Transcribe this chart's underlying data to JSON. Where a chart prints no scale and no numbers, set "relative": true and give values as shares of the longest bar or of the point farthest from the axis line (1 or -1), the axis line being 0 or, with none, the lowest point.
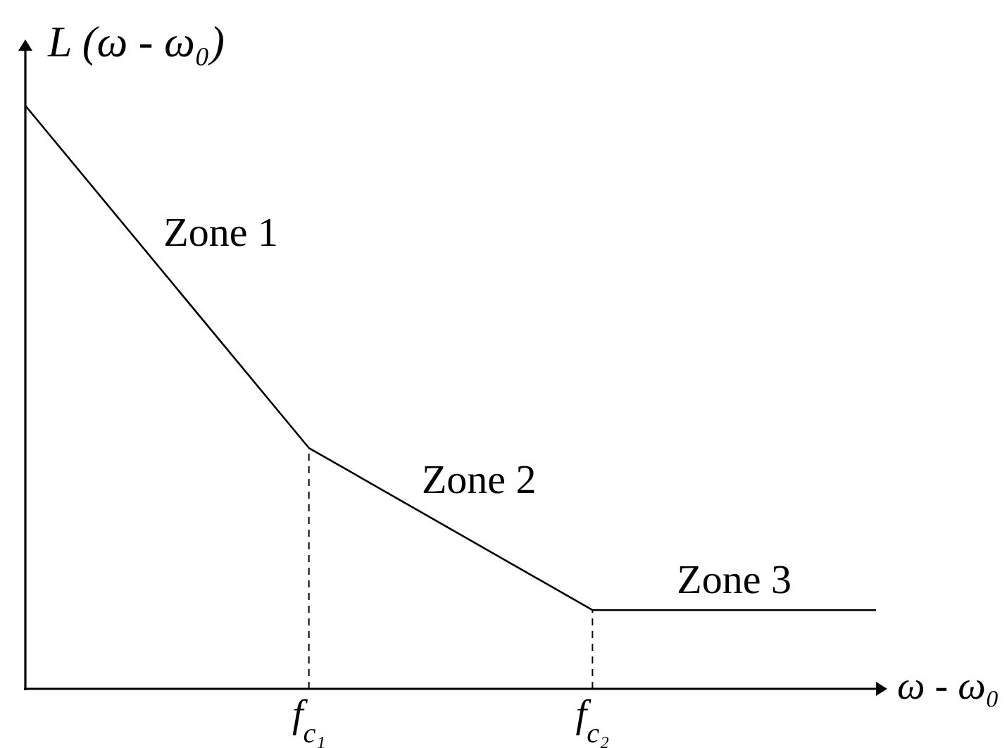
{
  "chart_data": {
    "type": "line",
    "relative": true,
    "xlabel": "ω - ω₀",
    "ylabel": "L (ω - ω₀)",
    "categories": [
      null,
      "f$_{c₁}$",
      "f$_{c₂}$",
      null
    ],
    "series": [
      {
        "color": "#000000",
        "values": [
          1,
          0.413,
          0.135,
          0.135
        ]
      },
      {
        "color": "#000000",
        "line_style": "dashed",
        "x": [
          "f$_{c₁}$",
          "f$_{c₁}$"
        ],
        "values": [
          0,
          0.413
        ]
      },
      {
        "color": "#000000",
        "line_style": "dashed",
        "x": [
          "f$_{c₂}$",
          "f$_{c₂}$"
        ],
        "values": [
          0,
          0.135
        ]
      }
    ],
    "annotations": [
      "Zone 1",
      "Zone 2",
      "Zone 3"
    ]
  }
}
